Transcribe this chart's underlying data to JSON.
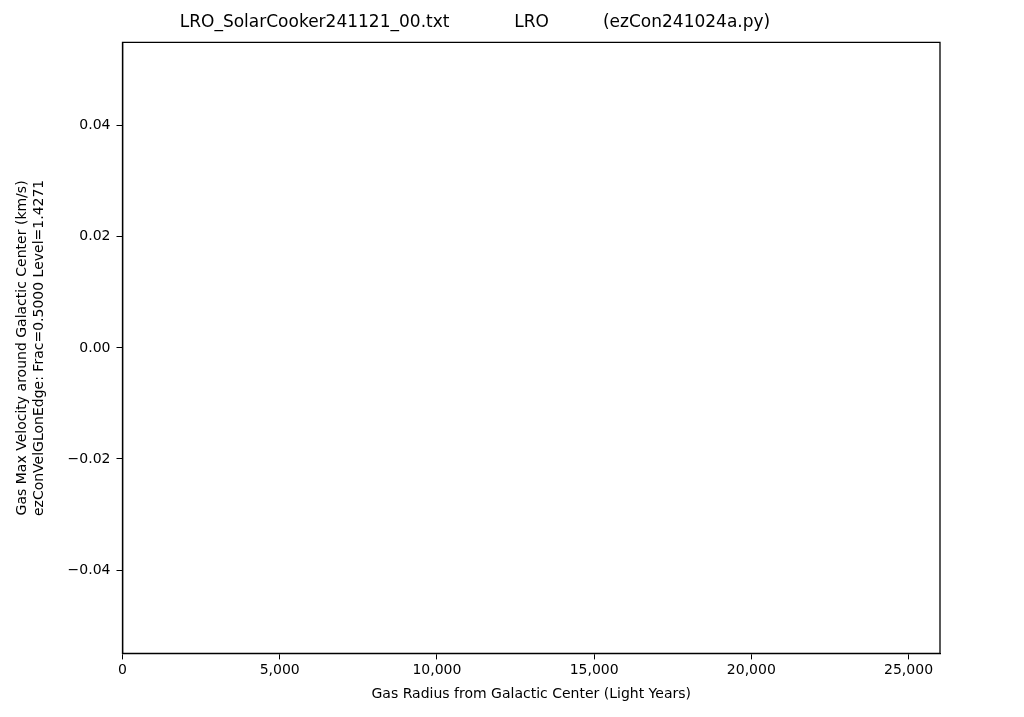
{
  "chart_data": {
    "type": "scatter",
    "title": "LRO_SolarCooker241121_00.txt            LRO          (ezCon241024a.py)",
    "xlabel": "Gas Radius from Galactic Center (Light Years)",
    "ylabel": "Gas Max Velocity around Galactic Center (km/s)\nezConVelGLonEdge: Frac=0.5000 Level=1.4271",
    "xlim": [
      0,
      26000
    ],
    "xticks": [
      0,
      {
        "value": 5000,
        "label": "5,000"
      },
      {
        "value": 10000,
        "label": "10,000"
      },
      {
        "value": 15000,
        "label": "15,000"
      },
      {
        "value": 20000,
        "label": "20,000"
      },
      {
        "value": 25000,
        "label": "25,000"
      }
    ],
    "ylim": [
      -0.055,
      0.055
    ],
    "yticks": [
      {
        "value": -0.04,
        "label": "−0.04"
      },
      {
        "value": -0.02,
        "label": "−0.02"
      },
      {
        "value": 0,
        "label": "0.00"
      },
      {
        "value": 0.02,
        "label": "0.02"
      },
      {
        "value": 0.04,
        "label": "0.04"
      }
    ],
    "grid": false,
    "legend": false
  }
}
